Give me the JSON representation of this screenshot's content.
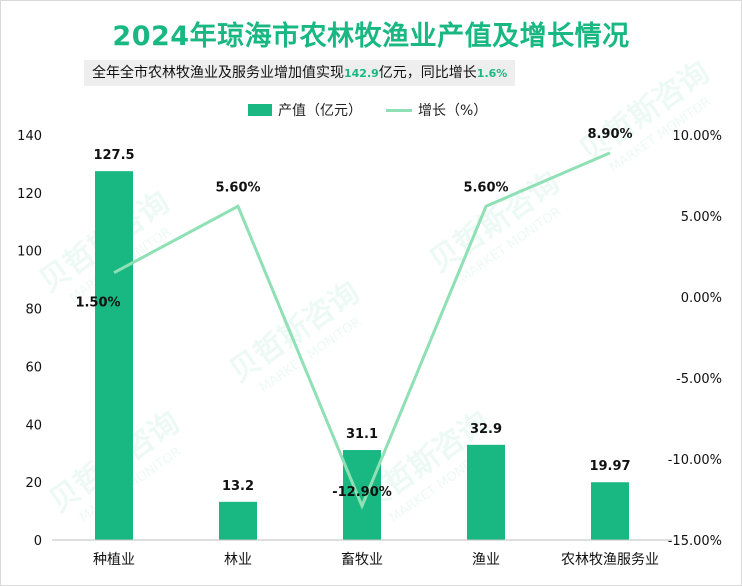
{
  "title": "2024年琼海市农林牧渔业产值及增长情况",
  "subtitle": {
    "prefix": "全年全市农林牧渔业及服务业增加值实现",
    "value": "142.9",
    "middle": "亿元，同比增长",
    "growth": "1.6%"
  },
  "watermark": {
    "cn": "贝哲斯咨询",
    "en": "MARKET MONITOR"
  },
  "colors": {
    "bar": "#19b882",
    "line": "#8fe0b4",
    "accent": "#19b882"
  },
  "chart_data": {
    "type": "bar",
    "categories": [
      "种植业",
      "林业",
      "畜牧业",
      "渔业",
      "农林牧渔服务业"
    ],
    "series": [
      {
        "name": "产值（亿元）",
        "type": "bar",
        "axis": "left",
        "values": [
          127.5,
          13.2,
          31.1,
          32.9,
          19.97
        ],
        "labels": [
          "127.5",
          "13.2",
          "31.1",
          "32.9",
          "19.97"
        ]
      },
      {
        "name": "增长（%）",
        "type": "line",
        "axis": "right",
        "values": [
          1.5,
          5.6,
          -12.9,
          5.6,
          8.9
        ],
        "labels": [
          "1.50%",
          "5.60%",
          "-12.90%",
          "5.60%",
          "8.90%"
        ]
      }
    ],
    "y_left": {
      "min": 0,
      "max": 140,
      "ticks": [
        "0",
        "20",
        "40",
        "60",
        "80",
        "100",
        "120",
        "140"
      ]
    },
    "y_right": {
      "min": -15,
      "max": 10,
      "ticks": [
        "-15.00%",
        "-10.00%",
        "-5.00%",
        "0.00%",
        "5.00%",
        "10.00%"
      ]
    }
  }
}
